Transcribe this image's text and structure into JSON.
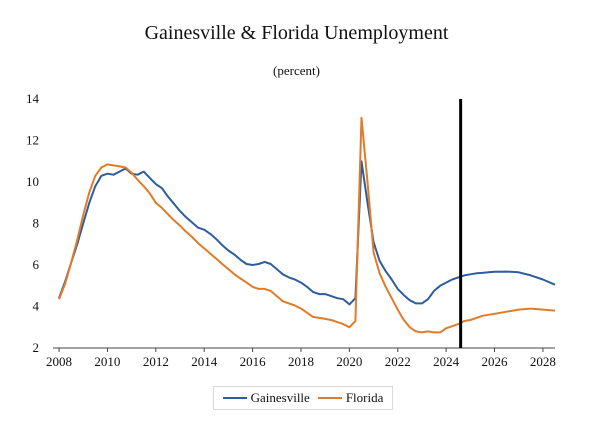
{
  "chart_data": {
    "type": "line",
    "title": "Gainesville & Florida Unemployment",
    "subtitle": "(percent)",
    "xlabel": "",
    "ylabel": "",
    "xlim": [
      2007.75,
      2028.5
    ],
    "ylim": [
      2,
      14
    ],
    "x_ticks": [
      2008,
      2010,
      2012,
      2014,
      2016,
      2018,
      2020,
      2022,
      2024,
      2026,
      2028
    ],
    "y_ticks": [
      2,
      4,
      6,
      8,
      10,
      12,
      14
    ],
    "grid": false,
    "legend_position": "bottom",
    "forecast_marker_x": 2024.6,
    "series": [
      {
        "name": "Gainesville",
        "color": "#2e5d9e",
        "points": [
          [
            2008.0,
            4.4
          ],
          [
            2008.25,
            5.2
          ],
          [
            2008.5,
            6.1
          ],
          [
            2008.75,
            7.0
          ],
          [
            2009.0,
            8.0
          ],
          [
            2009.25,
            9.0
          ],
          [
            2009.5,
            9.8
          ],
          [
            2009.75,
            10.3
          ],
          [
            2010.0,
            10.4
          ],
          [
            2010.25,
            10.35
          ],
          [
            2010.5,
            10.5
          ],
          [
            2010.75,
            10.65
          ],
          [
            2011.0,
            10.4
          ],
          [
            2011.25,
            10.35
          ],
          [
            2011.5,
            10.5
          ],
          [
            2011.75,
            10.2
          ],
          [
            2012.0,
            9.9
          ],
          [
            2012.25,
            9.7
          ],
          [
            2012.5,
            9.3
          ],
          [
            2012.75,
            8.95
          ],
          [
            2013.0,
            8.6
          ],
          [
            2013.25,
            8.3
          ],
          [
            2013.5,
            8.05
          ],
          [
            2013.75,
            7.8
          ],
          [
            2014.0,
            7.7
          ],
          [
            2014.25,
            7.5
          ],
          [
            2014.5,
            7.25
          ],
          [
            2014.75,
            6.95
          ],
          [
            2015.0,
            6.7
          ],
          [
            2015.25,
            6.5
          ],
          [
            2015.5,
            6.25
          ],
          [
            2015.75,
            6.05
          ],
          [
            2016.0,
            6.0
          ],
          [
            2016.25,
            6.05
          ],
          [
            2016.5,
            6.15
          ],
          [
            2016.75,
            6.05
          ],
          [
            2017.0,
            5.8
          ],
          [
            2017.25,
            5.55
          ],
          [
            2017.5,
            5.4
          ],
          [
            2017.75,
            5.3
          ],
          [
            2018.0,
            5.15
          ],
          [
            2018.25,
            4.95
          ],
          [
            2018.5,
            4.7
          ],
          [
            2018.75,
            4.6
          ],
          [
            2019.0,
            4.6
          ],
          [
            2019.25,
            4.5
          ],
          [
            2019.5,
            4.4
          ],
          [
            2019.75,
            4.35
          ],
          [
            2020.0,
            4.1
          ],
          [
            2020.25,
            4.4
          ],
          [
            2020.5,
            11.0
          ],
          [
            2020.75,
            9.0
          ],
          [
            2021.0,
            7.1
          ],
          [
            2021.25,
            6.2
          ],
          [
            2021.5,
            5.7
          ],
          [
            2021.75,
            5.3
          ],
          [
            2022.0,
            4.85
          ],
          [
            2022.25,
            4.55
          ],
          [
            2022.5,
            4.3
          ],
          [
            2022.75,
            4.15
          ],
          [
            2023.0,
            4.15
          ],
          [
            2023.25,
            4.35
          ],
          [
            2023.5,
            4.75
          ],
          [
            2023.75,
            5.0
          ],
          [
            2024.0,
            5.15
          ],
          [
            2024.25,
            5.3
          ],
          [
            2024.5,
            5.4
          ],
          [
            2024.75,
            5.5
          ],
          [
            2025.0,
            5.55
          ],
          [
            2025.25,
            5.6
          ],
          [
            2025.5,
            5.62
          ],
          [
            2025.75,
            5.65
          ],
          [
            2026.0,
            5.67
          ],
          [
            2026.5,
            5.68
          ],
          [
            2027.0,
            5.65
          ],
          [
            2027.5,
            5.5
          ],
          [
            2028.0,
            5.3
          ],
          [
            2028.5,
            5.05
          ]
        ]
      },
      {
        "name": "Florida",
        "color": "#e07b28",
        "points": [
          [
            2008.0,
            4.35
          ],
          [
            2008.25,
            5.1
          ],
          [
            2008.5,
            6.1
          ],
          [
            2008.75,
            7.2
          ],
          [
            2009.0,
            8.4
          ],
          [
            2009.25,
            9.5
          ],
          [
            2009.5,
            10.3
          ],
          [
            2009.75,
            10.7
          ],
          [
            2010.0,
            10.85
          ],
          [
            2010.25,
            10.8
          ],
          [
            2010.5,
            10.75
          ],
          [
            2010.75,
            10.7
          ],
          [
            2011.0,
            10.45
          ],
          [
            2011.25,
            10.1
          ],
          [
            2011.5,
            9.8
          ],
          [
            2011.75,
            9.45
          ],
          [
            2012.0,
            9.0
          ],
          [
            2012.25,
            8.75
          ],
          [
            2012.5,
            8.45
          ],
          [
            2012.75,
            8.15
          ],
          [
            2013.0,
            7.9
          ],
          [
            2013.25,
            7.6
          ],
          [
            2013.5,
            7.35
          ],
          [
            2013.75,
            7.05
          ],
          [
            2014.0,
            6.8
          ],
          [
            2014.25,
            6.55
          ],
          [
            2014.5,
            6.3
          ],
          [
            2014.75,
            6.05
          ],
          [
            2015.0,
            5.8
          ],
          [
            2015.25,
            5.55
          ],
          [
            2015.5,
            5.35
          ],
          [
            2015.75,
            5.15
          ],
          [
            2016.0,
            4.95
          ],
          [
            2016.25,
            4.85
          ],
          [
            2016.5,
            4.85
          ],
          [
            2016.75,
            4.75
          ],
          [
            2017.0,
            4.5
          ],
          [
            2017.25,
            4.25
          ],
          [
            2017.5,
            4.15
          ],
          [
            2017.75,
            4.05
          ],
          [
            2018.0,
            3.9
          ],
          [
            2018.25,
            3.7
          ],
          [
            2018.5,
            3.5
          ],
          [
            2018.75,
            3.45
          ],
          [
            2019.0,
            3.4
          ],
          [
            2019.25,
            3.35
          ],
          [
            2019.5,
            3.25
          ],
          [
            2019.75,
            3.15
          ],
          [
            2020.0,
            3.0
          ],
          [
            2020.25,
            3.3
          ],
          [
            2020.5,
            13.1
          ],
          [
            2020.75,
            10.0
          ],
          [
            2021.0,
            6.6
          ],
          [
            2021.25,
            5.6
          ],
          [
            2021.5,
            4.95
          ],
          [
            2021.75,
            4.4
          ],
          [
            2022.0,
            3.85
          ],
          [
            2022.25,
            3.35
          ],
          [
            2022.5,
            3.0
          ],
          [
            2022.75,
            2.8
          ],
          [
            2023.0,
            2.75
          ],
          [
            2023.25,
            2.8
          ],
          [
            2023.5,
            2.75
          ],
          [
            2023.75,
            2.75
          ],
          [
            2024.0,
            2.95
          ],
          [
            2024.25,
            3.05
          ],
          [
            2024.5,
            3.15
          ],
          [
            2024.75,
            3.3
          ],
          [
            2025.0,
            3.35
          ],
          [
            2025.25,
            3.45
          ],
          [
            2025.5,
            3.55
          ],
          [
            2025.75,
            3.6
          ],
          [
            2026.0,
            3.65
          ],
          [
            2026.5,
            3.75
          ],
          [
            2027.0,
            3.85
          ],
          [
            2027.5,
            3.9
          ],
          [
            2028.0,
            3.85
          ],
          [
            2028.5,
            3.8
          ]
        ]
      }
    ]
  }
}
